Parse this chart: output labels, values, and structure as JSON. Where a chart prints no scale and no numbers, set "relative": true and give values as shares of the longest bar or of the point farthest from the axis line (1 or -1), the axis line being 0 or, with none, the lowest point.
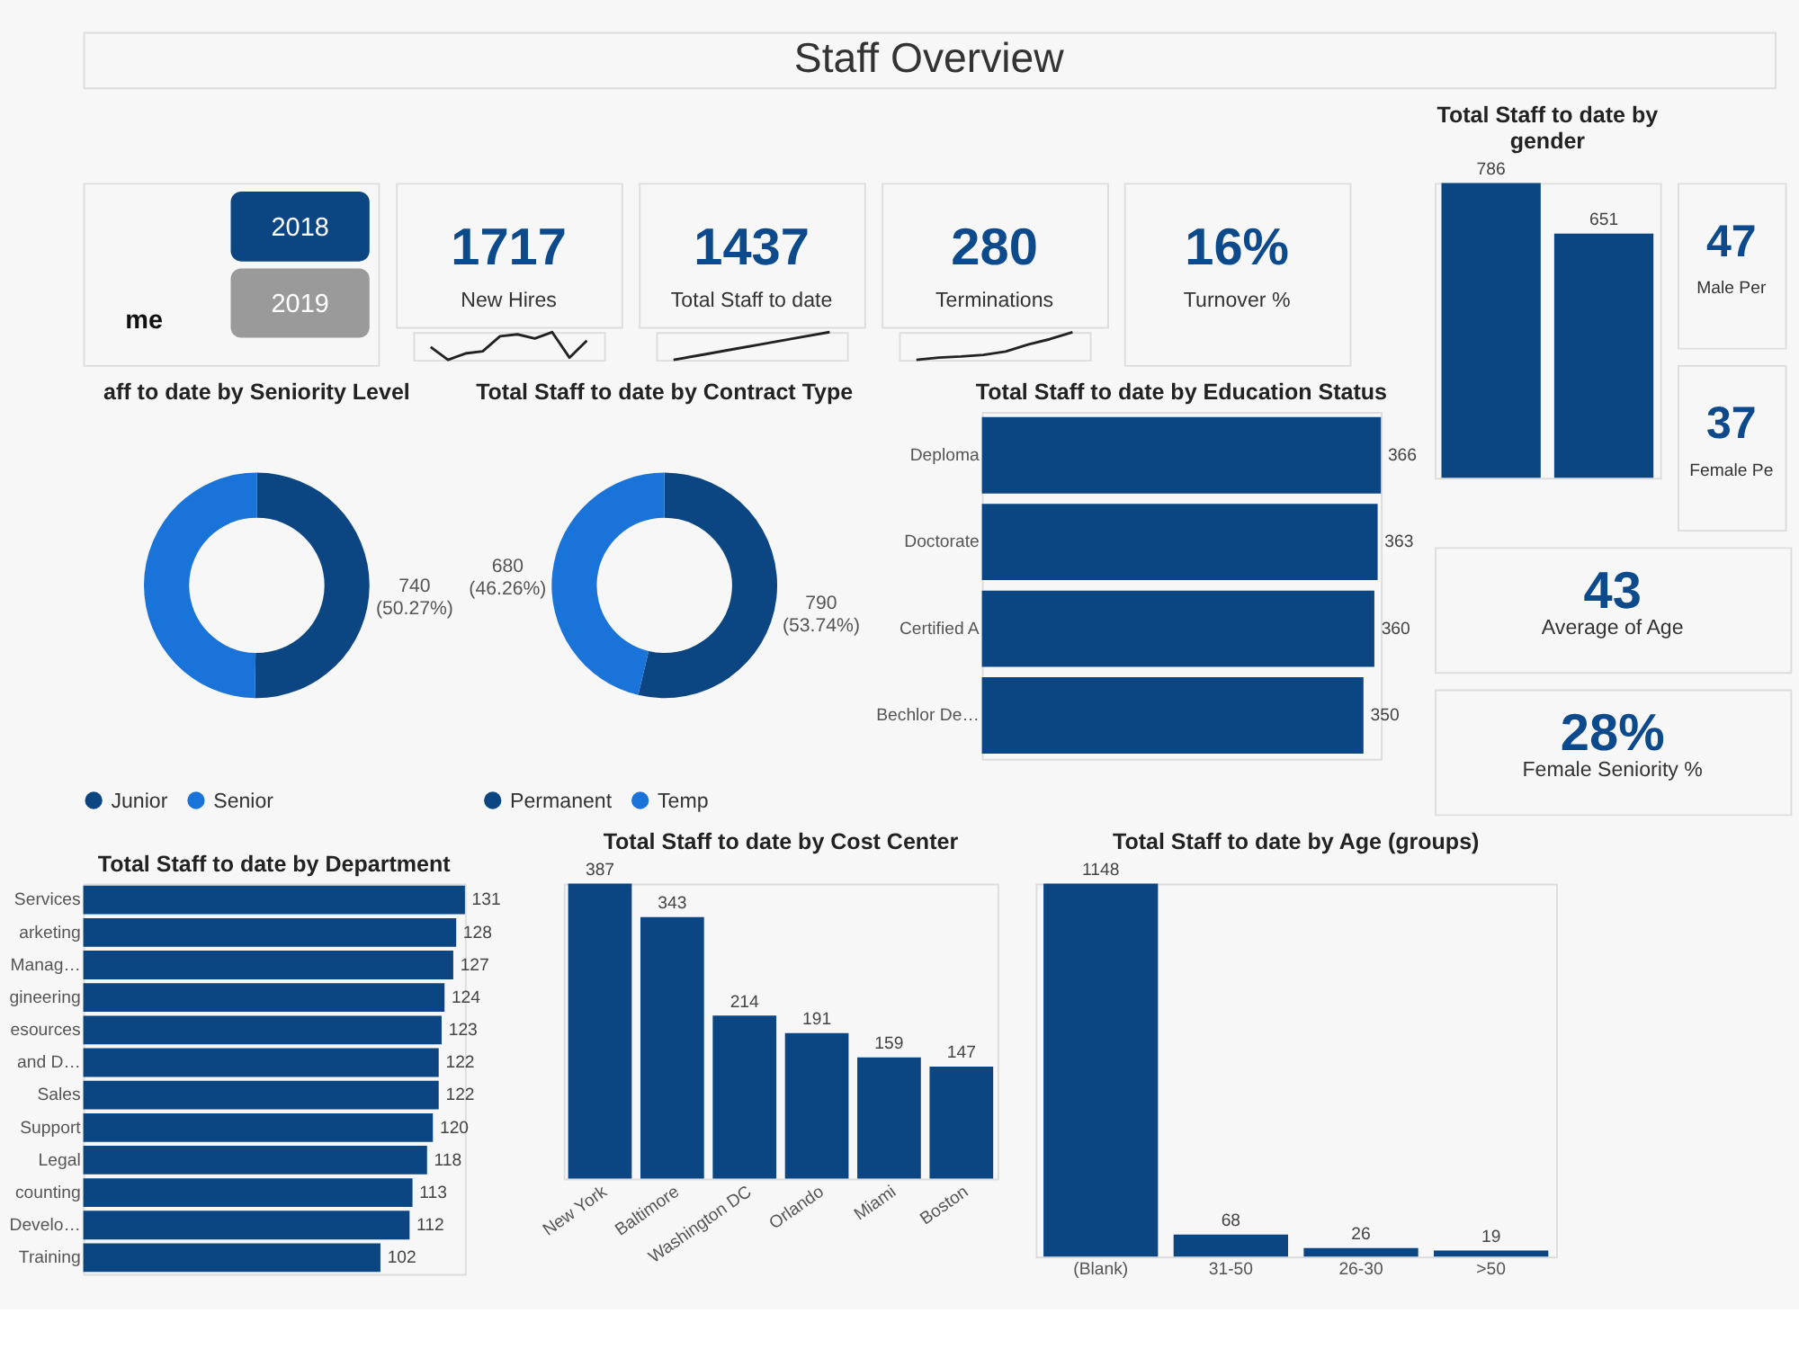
{
  "chart_data": [
    {
      "type": "other",
      "title": "Staff Overview"
    },
    {
      "type": "other",
      "annotations": [
        "me",
        "2018",
        "2019"
      ]
    },
    {
      "type": "line",
      "relative": true,
      "title": "1717",
      "subtitle": "New Hires",
      "categories": [
        null,
        null,
        null,
        null,
        null,
        null,
        null,
        null,
        null,
        null
      ],
      "color": "#222222",
      "values": [
        0.46,
        0,
        0.23,
        0.31,
        0.85,
        0.92,
        0.77,
        1,
        0.08,
        0.69
      ]
    },
    {
      "type": "line",
      "relative": true,
      "title": "1437",
      "subtitle": "Total Staff to date",
      "categories": [
        null,
        null,
        null,
        null,
        null,
        null
      ],
      "color": "#222222",
      "values": [
        0,
        0.2,
        0.4,
        0.6,
        0.8,
        1
      ]
    },
    {
      "type": "line",
      "relative": true,
      "title": "280",
      "subtitle": "Terminations",
      "categories": [
        null,
        null,
        null,
        null,
        null,
        null,
        null,
        null
      ],
      "color": "#222222",
      "values": [
        0,
        0.08,
        0.12,
        0.18,
        0.3,
        0.55,
        0.75,
        1
      ]
    },
    {
      "type": "other",
      "title": "16%",
      "subtitle": "Turnover %"
    },
    {
      "type": "bar",
      "title": "Total Staff to date by gender",
      "categories": [
        null,
        null
      ],
      "values": [
        786,
        651
      ],
      "color": "#0b4682",
      "data_labels": true
    },
    {
      "type": "other",
      "title": "47",
      "subtitle": "Male Per"
    },
    {
      "type": "other",
      "title": "37",
      "subtitle": "Female Pe"
    },
    {
      "type": "donut",
      "title": "aff to date by Seniority Level",
      "categories": [
        "Junior",
        "Senior"
      ],
      "values": [
        740,
        732
      ],
      "colors": [
        "#0b4682",
        "#1a73d9"
      ],
      "value_labels": [
        "740\n(50.27%)",
        null
      ],
      "legend": "bottom"
    },
    {
      "type": "donut",
      "title": "Total Staff to date by Contract Type",
      "categories": [
        "Permanent",
        "Temp"
      ],
      "values": [
        790,
        680
      ],
      "colors": [
        "#0b4682",
        "#1a73d9"
      ],
      "value_labels": [
        "790\n(53.74%)",
        "680\n(46.26%)"
      ],
      "legend": "bottom"
    },
    {
      "type": "bar",
      "orientation": "horizontal",
      "title": "Total Staff to date by Education Status",
      "categories": [
        "Deploma",
        "Doctorate",
        "Certified A",
        "Bechlor De…"
      ],
      "values": [
        366,
        363,
        360,
        350
      ],
      "color": "#0b4682",
      "data_labels": true
    },
    {
      "type": "other",
      "title": "43",
      "subtitle": "Average of Age"
    },
    {
      "type": "other",
      "title": "28%",
      "subtitle": "Female Seniority %"
    },
    {
      "type": "bar",
      "orientation": "horizontal",
      "title": "Total Staff to date by Department",
      "categories": [
        "Services",
        "arketing",
        "Manag…",
        "gineering",
        "esources",
        "and D…",
        "Sales",
        "Support",
        "Legal",
        "counting",
        "Develo…",
        "Training"
      ],
      "values": [
        131,
        128,
        127,
        124,
        123,
        122,
        122,
        120,
        118,
        113,
        112,
        102
      ],
      "color": "#0b4682",
      "data_labels": true
    },
    {
      "type": "bar",
      "title": "Total Staff to date by Cost Center",
      "categories": [
        "New York",
        "Baltimore",
        "Washington DC",
        "Orlando",
        "Miami",
        "Boston"
      ],
      "values": [
        387,
        343,
        214,
        191,
        159,
        147
      ],
      "color": "#0b4682",
      "data_labels": true
    },
    {
      "type": "bar",
      "title": "Total Staff to date by Age (groups)",
      "categories": [
        "(Blank)",
        "31-50",
        "26-30",
        ">50"
      ],
      "values": [
        1148,
        68,
        26,
        19
      ],
      "color": "#0b4682",
      "data_labels": true
    }
  ]
}
